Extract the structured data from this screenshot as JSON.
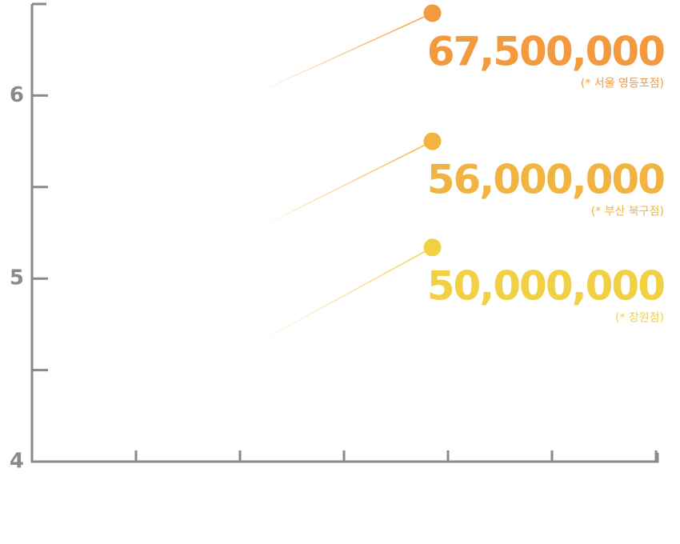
{
  "chart_data": {
    "type": "scatter",
    "ylim": [
      4,
      6.5
    ],
    "yticks": [
      4,
      5,
      6
    ],
    "yminorticks": [
      4.5,
      5.5
    ],
    "xlim": [
      0,
      6
    ],
    "xminorticks": [
      1,
      2,
      3,
      4,
      5,
      6
    ],
    "points": [
      {
        "x": 3.85,
        "y": 6.45,
        "color": "#f39a3e",
        "amount": "67,500,000",
        "note": "(* 서울 영등포점)"
      },
      {
        "x": 3.85,
        "y": 5.75,
        "color": "#f2b440",
        "amount": "56,000,000",
        "note": "(* 부산 북구점)"
      },
      {
        "x": 3.85,
        "y": 5.17,
        "color": "#f2d044",
        "amount": "50,000,000",
        "note": "(* 창원점)"
      }
    ]
  }
}
